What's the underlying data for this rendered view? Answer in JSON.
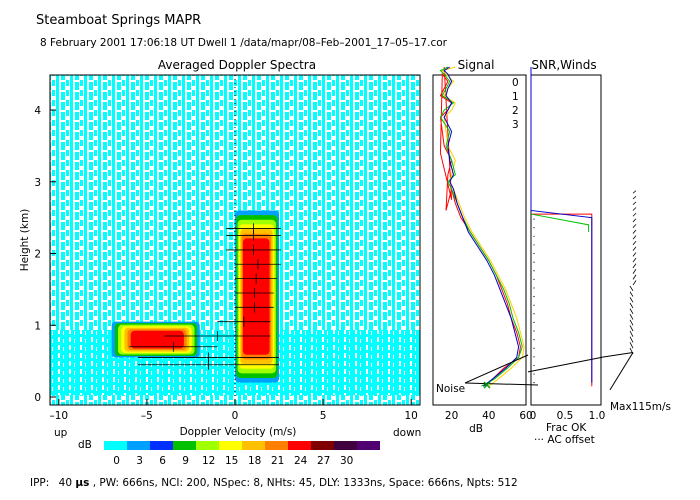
{
  "header": {
    "title": "Steamboat Springs   MAPR",
    "info": "8 February 2001   17:06:18 UT    Dwell   1    /data/mapr/08–Feb–2001_17–05–17.cor"
  },
  "footer": {
    "ipp_label": "IPP:",
    "ipp_value": "40",
    "ipp_unit": "μs",
    "rest": ",  PW:  666ns,  NCI: 200,  NSpec:  8, NHts: 45,  DLY: 1333ns,   Space:  666ns,  Npts: 512"
  },
  "colors": {
    "background_field": "#00ffff",
    "series": [
      "#ff0000",
      "#ffd000",
      "#00c000",
      "#0000d0"
    ]
  },
  "chart_data": [
    {
      "type": "heatmap",
      "title": "Averaged Doppler Spectra",
      "xlabel": "Doppler Velocity (m/s)",
      "ylabel": "Height (km)",
      "xlim": [
        -10.5,
        10.5
      ],
      "ylim": [
        0,
        4.6
      ],
      "xticks": [
        "–10",
        "–5",
        "0",
        "5",
        "10"
      ],
      "xtick_values": [
        -10,
        -5,
        0,
        5,
        10
      ],
      "yticks": [
        "0",
        "1",
        "2",
        "3",
        "4"
      ],
      "ytick_values": [
        0,
        1,
        2,
        3,
        4
      ],
      "x_end_labels": {
        "left": "up",
        "right": "down"
      },
      "colorbar": {
        "label": "dB",
        "ticks": [
          "0",
          "3",
          "6",
          "9",
          "12",
          "15",
          "18",
          "21",
          "24",
          "27",
          "30"
        ],
        "colors": [
          "#00ffff",
          "#00a0ff",
          "#0030ff",
          "#00c000",
          "#a0ff00",
          "#ffff00",
          "#ffc000",
          "#ff8000",
          "#ff0000",
          "#800000",
          "#400040",
          "#500070"
        ]
      },
      "echo_regions": [
        {
          "name": "ground-clutter",
          "x": [
            -7,
            -2
          ],
          "y": [
            0.55,
            1.05
          ]
        },
        {
          "name": "precip-column",
          "x": [
            0,
            2.5
          ],
          "y": [
            0.2,
            2.6
          ]
        }
      ],
      "wind_marks": [
        {
          "h": 0.45,
          "x0": -5.5,
          "x1": 2.5
        },
        {
          "h": 0.55,
          "x0": -5.5,
          "x1": 2.5
        },
        {
          "h": 0.7,
          "x0": -6,
          "x1": -1
        },
        {
          "h": 0.85,
          "x0": -4,
          "x1": 2
        },
        {
          "h": 1.05,
          "x0": -1,
          "x1": 2
        },
        {
          "h": 1.25,
          "x0": 0,
          "x1": 2.2
        },
        {
          "h": 1.45,
          "x0": 0,
          "x1": 2.2
        },
        {
          "h": 1.65,
          "x0": 0,
          "x1": 2.4
        },
        {
          "h": 1.85,
          "x0": 0,
          "x1": 2.6
        },
        {
          "h": 2.05,
          "x0": -0.5,
          "x1": 2.6
        },
        {
          "h": 2.25,
          "x0": -0.5,
          "x1": 2.6
        },
        {
          "h": 2.35,
          "x0": -0.5,
          "x1": 2.6
        }
      ]
    },
    {
      "type": "line",
      "title": "Signal",
      "xlabel": "dB",
      "xlim": [
        10,
        60
      ],
      "ylim": [
        0,
        4.6
      ],
      "xticks": [
        "20",
        "40",
        "60"
      ],
      "xtick_values": [
        20,
        40,
        60
      ],
      "legend": [
        "0",
        "1",
        "2",
        "3"
      ],
      "noise_label": "Noise",
      "series": [
        {
          "name": "0",
          "x": [
            38,
            42,
            48,
            56,
            57,
            55,
            52,
            50,
            47,
            44,
            40,
            35,
            30,
            25,
            22,
            20,
            17,
            18,
            20,
            16,
            15,
            14,
            18,
            20,
            14,
            16,
            18,
            15,
            14,
            20,
            16
          ],
          "h": [
            0.15,
            0.25,
            0.4,
            0.55,
            0.7,
            0.9,
            1.1,
            1.3,
            1.5,
            1.7,
            1.9,
            2.1,
            2.3,
            2.5,
            2.7,
            2.9,
            2.6,
            3.1,
            3.3,
            3.5,
            3.7,
            3.9,
            4.0,
            4.1,
            4.2,
            4.3,
            4.4,
            4.5,
            3.4,
            2.75,
            4.6
          ]
        },
        {
          "name": "1",
          "x": [
            40,
            45,
            52,
            58,
            59,
            57,
            55,
            52,
            49,
            45,
            41,
            36,
            31,
            27,
            24,
            21,
            19,
            20,
            22,
            18,
            17,
            16,
            20,
            22,
            16,
            18,
            21,
            17,
            15,
            22
          ],
          "h": [
            0.15,
            0.25,
            0.4,
            0.55,
            0.7,
            0.9,
            1.1,
            1.3,
            1.5,
            1.7,
            1.9,
            2.1,
            2.3,
            2.5,
            2.7,
            2.9,
            3.0,
            3.1,
            3.3,
            3.5,
            3.7,
            3.9,
            4.0,
            4.1,
            4.2,
            4.3,
            4.4,
            4.5,
            4.55,
            4.6
          ]
        },
        {
          "name": "2",
          "x": [
            36,
            43,
            50,
            56,
            58,
            56,
            53,
            51,
            48,
            44,
            40,
            35,
            30,
            26,
            23,
            20,
            18,
            22,
            20,
            17,
            19,
            14,
            16,
            21,
            15,
            17,
            19,
            16,
            14,
            18
          ],
          "h": [
            0.15,
            0.25,
            0.4,
            0.55,
            0.7,
            0.9,
            1.1,
            1.3,
            1.5,
            1.7,
            1.9,
            2.1,
            2.3,
            2.5,
            2.7,
            2.9,
            3.0,
            3.1,
            3.3,
            3.5,
            3.7,
            3.9,
            4.0,
            4.1,
            4.2,
            4.3,
            4.4,
            4.5,
            4.55,
            4.6
          ]
        },
        {
          "name": "3",
          "x": [
            37,
            42,
            49,
            55,
            56,
            54,
            52,
            49,
            46,
            43,
            39,
            34,
            29,
            26,
            23,
            21,
            19,
            21,
            19,
            18,
            20,
            16,
            18,
            20,
            17,
            18,
            20,
            18,
            16,
            19
          ],
          "h": [
            0.15,
            0.25,
            0.4,
            0.55,
            0.7,
            0.9,
            1.1,
            1.3,
            1.5,
            1.7,
            1.9,
            2.1,
            2.3,
            2.5,
            2.7,
            2.9,
            3.0,
            3.1,
            3.3,
            3.5,
            3.7,
            3.9,
            4.0,
            4.1,
            4.2,
            4.3,
            4.4,
            4.5,
            4.55,
            4.6
          ]
        }
      ]
    },
    {
      "type": "line",
      "title": "SNR,Winds",
      "xlim": [
        0,
        1
      ],
      "ylim": [
        0,
        4.6
      ],
      "xticks": [
        "0",
        "0.5",
        "1.0"
      ],
      "xtick_values": [
        0,
        0.5,
        1.0
      ],
      "frac_ok_label": "Frac OK",
      "ac_offset_label": "··· AC offset",
      "max_wind_label": "Max115m/s",
      "series": [
        {
          "name": "red",
          "x": [
            0.0,
            0.0,
            0.95,
            0.95
          ],
          "h": [
            2.55,
            2.55,
            2.55,
            0.15
          ]
        },
        {
          "name": "green",
          "x": [
            0.0,
            0.9,
            0.9
          ],
          "h": [
            2.55,
            2.4,
            2.3
          ]
        },
        {
          "name": "blue",
          "x": [
            0.0,
            0.0,
            0.95,
            0.95
          ],
          "h": [
            4.6,
            2.6,
            2.5,
            0.2
          ]
        }
      ]
    }
  ]
}
